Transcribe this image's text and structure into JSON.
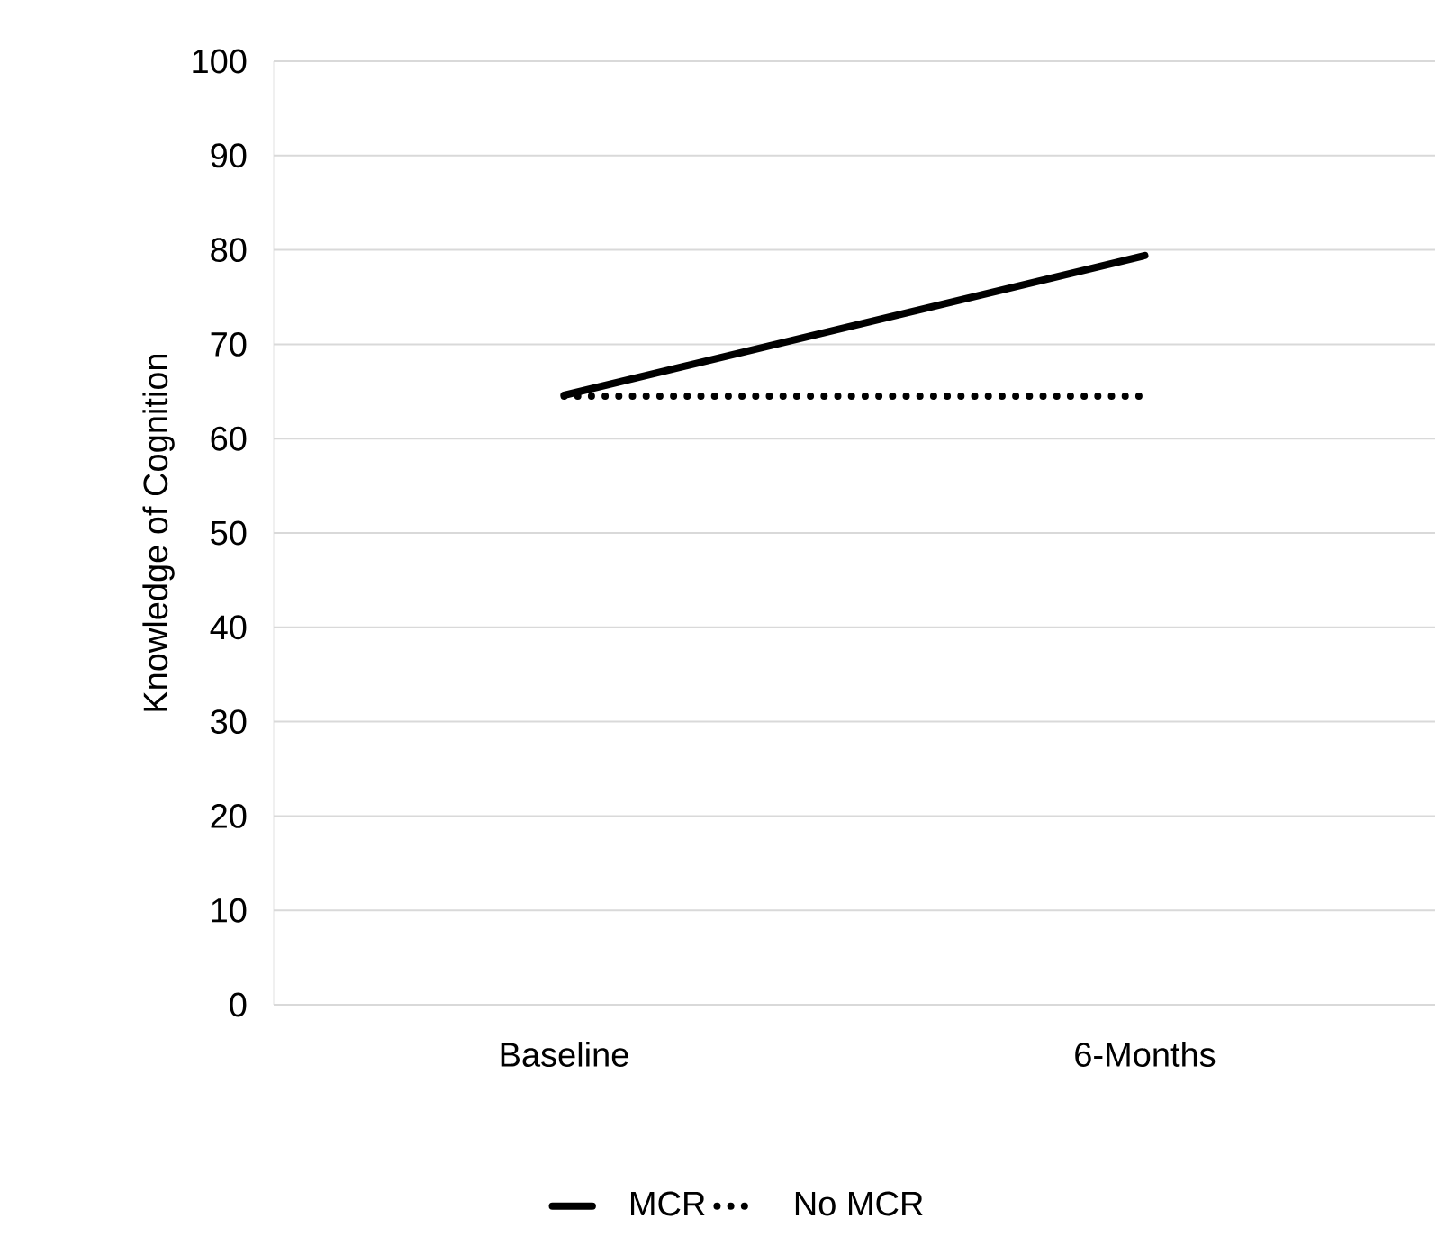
{
  "chart_data": {
    "type": "line",
    "ylabel": "Knowledge of Cognition",
    "categories": [
      "Baseline",
      "6-Months"
    ],
    "series": [
      {
        "name": "MCR",
        "color": "#000000",
        "line_style": "solid",
        "values": [
          64.6,
          79.4
        ]
      },
      {
        "name": "No MCR",
        "color": "#000000",
        "line_style": "dotted",
        "values": [
          64.5,
          64.5
        ]
      }
    ],
    "ylim": [
      0,
      100
    ],
    "yticks": [
      0,
      10,
      20,
      30,
      40,
      50,
      60,
      70,
      80,
      90,
      100
    ],
    "grid": "y",
    "legend": "bottom",
    "marker": "none"
  }
}
